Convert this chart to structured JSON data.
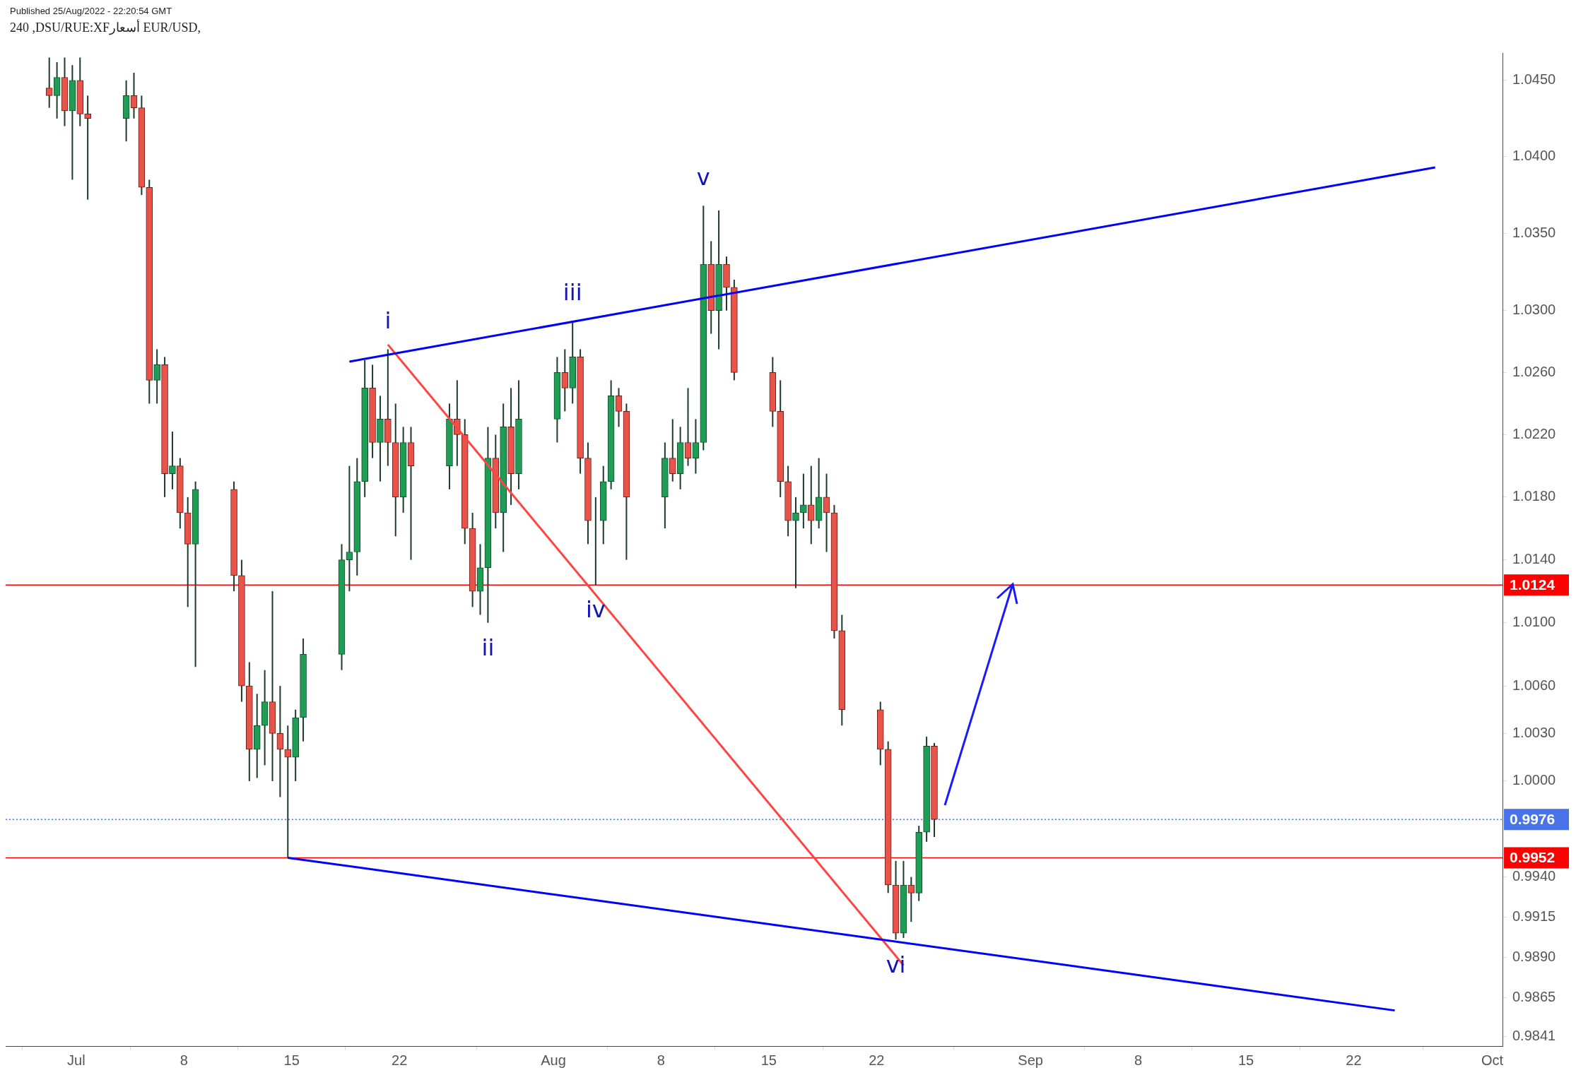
{
  "chart_data": {
    "type": "candlestick",
    "title": "240 ,DSU/RUE:XFأسعار EUR/USD,",
    "x": [
      "2022-06-29T06:00",
      "2022-06-29T18:00",
      "2022-06-30T06:00",
      "2022-06-30T18:00",
      "2022-07-01T06:00",
      "2022-07-01T18:00",
      "2022-07-04T06:00",
      "2022-07-04T18:00",
      "2022-07-05T06:00",
      "2022-07-05T18:00",
      "2022-07-06T06:00",
      "2022-07-06T18:00",
      "2022-07-07T06:00",
      "2022-07-07T18:00",
      "2022-07-08T06:00",
      "2022-07-08T18:00",
      "2022-07-11T06:00",
      "2022-07-11T18:00",
      "2022-07-12T06:00",
      "2022-07-12T18:00",
      "2022-07-13T06:00",
      "2022-07-13T18:00",
      "2022-07-14T06:00",
      "2022-07-14T18:00",
      "2022-07-15T06:00",
      "2022-07-15T18:00",
      "2022-07-18T06:00",
      "2022-07-18T18:00",
      "2022-07-19T06:00",
      "2022-07-19T18:00",
      "2022-07-20T06:00",
      "2022-07-20T18:00",
      "2022-07-21T06:00",
      "2022-07-21T18:00",
      "2022-07-22T06:00",
      "2022-07-22T18:00",
      "2022-07-25T06:00",
      "2022-07-25T18:00",
      "2022-07-26T06:00",
      "2022-07-26T18:00",
      "2022-07-27T06:00",
      "2022-07-27T18:00",
      "2022-07-28T06:00",
      "2022-07-28T18:00",
      "2022-07-29T06:00",
      "2022-07-29T18:00",
      "2022-08-01T06:00",
      "2022-08-01T18:00",
      "2022-08-02T06:00",
      "2022-08-02T18:00",
      "2022-08-03T06:00",
      "2022-08-03T18:00",
      "2022-08-04T06:00",
      "2022-08-04T18:00",
      "2022-08-05T06:00",
      "2022-08-05T18:00",
      "2022-08-08T06:00",
      "2022-08-08T18:00",
      "2022-08-09T06:00",
      "2022-08-09T18:00",
      "2022-08-10T06:00",
      "2022-08-10T18:00",
      "2022-08-11T06:00",
      "2022-08-11T18:00",
      "2022-08-12T06:00",
      "2022-08-12T18:00",
      "2022-08-15T06:00",
      "2022-08-15T18:00",
      "2022-08-16T06:00",
      "2022-08-16T18:00",
      "2022-08-17T06:00",
      "2022-08-17T18:00",
      "2022-08-18T06:00",
      "2022-08-18T18:00",
      "2022-08-19T06:00",
      "2022-08-19T18:00",
      "2022-08-22T06:00",
      "2022-08-22T18:00",
      "2022-08-23T06:00",
      "2022-08-23T18:00",
      "2022-08-24T06:00",
      "2022-08-24T18:00",
      "2022-08-25T06:00",
      "2022-08-25T18:00"
    ],
    "ohlc": [
      [
        1.0445,
        1.0465,
        1.0432,
        1.044
      ],
      [
        1.044,
        1.0462,
        1.0425,
        1.0452
      ],
      [
        1.0452,
        1.0465,
        1.042,
        1.043
      ],
      [
        1.043,
        1.046,
        1.0385,
        1.045
      ],
      [
        1.045,
        1.0465,
        1.042,
        1.0428
      ],
      [
        1.0428,
        1.044,
        1.0372,
        1.0425
      ],
      [
        1.0425,
        1.045,
        1.041,
        1.044
      ],
      [
        1.044,
        1.0455,
        1.0425,
        1.0432
      ],
      [
        1.0432,
        1.044,
        1.0375,
        1.038
      ],
      [
        1.038,
        1.0385,
        1.024,
        1.0255
      ],
      [
        1.0255,
        1.0275,
        1.024,
        1.0265
      ],
      [
        1.0265,
        1.027,
        1.018,
        1.0195
      ],
      [
        1.0195,
        1.0222,
        1.0185,
        1.02
      ],
      [
        1.02,
        1.0205,
        1.016,
        1.017
      ],
      [
        1.017,
        1.018,
        1.011,
        1.015
      ],
      [
        1.015,
        1.019,
        1.0072,
        1.0185
      ],
      [
        1.0185,
        1.019,
        1.012,
        1.013
      ],
      [
        1.013,
        1.014,
        1.005,
        1.006
      ],
      [
        1.006,
        1.0075,
        1.0,
        1.002
      ],
      [
        1.002,
        1.0055,
        1.0002,
        1.0035
      ],
      [
        1.0035,
        1.007,
        1.001,
        1.005
      ],
      [
        1.005,
        1.012,
        1.0,
        1.003
      ],
      [
        1.003,
        1.006,
        0.999,
        1.002
      ],
      [
        1.002,
        1.0035,
        0.9952,
        1.0015
      ],
      [
        1.0015,
        1.0045,
        1.0,
        1.004
      ],
      [
        1.004,
        1.009,
        1.0025,
        1.008
      ],
      [
        1.008,
        1.015,
        1.007,
        1.014
      ],
      [
        1.014,
        1.02,
        1.012,
        1.0145
      ],
      [
        1.0145,
        1.0205,
        1.013,
        1.019
      ],
      [
        1.019,
        1.0268,
        1.018,
        1.025
      ],
      [
        1.025,
        1.0265,
        1.0205,
        1.0215
      ],
      [
        1.0215,
        1.0245,
        1.019,
        1.023
      ],
      [
        1.023,
        1.0275,
        1.02,
        1.0215
      ],
      [
        1.0215,
        1.024,
        1.0155,
        1.018
      ],
      [
        1.018,
        1.0225,
        1.017,
        1.0215
      ],
      [
        1.0215,
        1.0225,
        1.014,
        1.02
      ],
      [
        1.02,
        1.024,
        1.0185,
        1.023
      ],
      [
        1.023,
        1.0255,
        1.02,
        1.022
      ],
      [
        1.022,
        1.023,
        1.015,
        1.016
      ],
      [
        1.016,
        1.017,
        1.011,
        1.012
      ],
      [
        1.012,
        1.015,
        1.0105,
        1.0135
      ],
      [
        1.0135,
        1.0225,
        1.01,
        1.0205
      ],
      [
        1.0205,
        1.022,
        1.016,
        1.017
      ],
      [
        1.017,
        1.024,
        1.0145,
        1.0225
      ],
      [
        1.0225,
        1.025,
        1.0175,
        1.0195
      ],
      [
        1.0195,
        1.0255,
        1.0185,
        1.023
      ],
      [
        1.023,
        1.027,
        1.0215,
        1.026
      ],
      [
        1.026,
        1.0275,
        1.0235,
        1.025
      ],
      [
        1.025,
        1.0293,
        1.024,
        1.027
      ],
      [
        1.027,
        1.0275,
        1.0195,
        1.0205
      ],
      [
        1.0205,
        1.0215,
        1.015,
        1.0165
      ],
      [
        1.0165,
        1.018,
        1.0124,
        1.0165
      ],
      [
        1.0165,
        1.02,
        1.015,
        1.019
      ],
      [
        1.019,
        1.0255,
        1.0185,
        1.0245
      ],
      [
        1.0245,
        1.025,
        1.0225,
        1.0235
      ],
      [
        1.0235,
        1.024,
        1.014,
        1.018
      ],
      [
        1.018,
        1.0215,
        1.016,
        1.0205
      ],
      [
        1.0205,
        1.023,
        1.019,
        1.0195
      ],
      [
        1.0195,
        1.0225,
        1.0185,
        1.0215
      ],
      [
        1.0215,
        1.025,
        1.02,
        1.0205
      ],
      [
        1.0205,
        1.023,
        1.0195,
        1.0215
      ],
      [
        1.0215,
        1.0368,
        1.021,
        1.033
      ],
      [
        1.033,
        1.0345,
        1.0285,
        1.03
      ],
      [
        1.03,
        1.0365,
        1.0275,
        1.033
      ],
      [
        1.033,
        1.0335,
        1.03,
        1.0315
      ],
      [
        1.0315,
        1.032,
        1.0255,
        1.026
      ],
      [
        1.026,
        1.027,
        1.0225,
        1.0235
      ],
      [
        1.0235,
        1.0255,
        1.018,
        1.019
      ],
      [
        1.019,
        1.02,
        1.0155,
        1.0165
      ],
      [
        1.0165,
        1.018,
        1.0122,
        1.017
      ],
      [
        1.017,
        1.0195,
        1.016,
        1.0175
      ],
      [
        1.0175,
        1.02,
        1.015,
        1.0165
      ],
      [
        1.0165,
        1.0205,
        1.016,
        1.018
      ],
      [
        1.018,
        1.0195,
        1.0145,
        1.017
      ],
      [
        1.017,
        1.0175,
        1.009,
        1.0095
      ],
      [
        1.0095,
        1.0105,
        1.0035,
        1.0045
      ],
      [
        1.0045,
        1.005,
        1.001,
        1.002
      ],
      [
        1.002,
        1.0025,
        0.993,
        0.9935
      ],
      [
        0.9935,
        0.995,
        0.9901,
        0.9905
      ],
      [
        0.9905,
        0.995,
        0.9902,
        0.9935
      ],
      [
        0.9935,
        0.994,
        0.9912,
        0.993
      ],
      [
        0.993,
        0.9972,
        0.9925,
        0.9968
      ],
      [
        0.9968,
        1.0028,
        0.9962,
        1.0022
      ],
      [
        1.0022,
        1.0024,
        0.9965,
        0.9976
      ]
    ],
    "series": [
      {
        "type": "line",
        "color": "#0000ff",
        "x": [
          "2022-07-18T18:00",
          "2022-09-27T07:00"
        ],
        "values": [
          1.0267,
          1.0393
        ]
      },
      {
        "type": "line",
        "color": "#0000ff",
        "x": [
          "2022-07-14T18:00",
          "2022-09-24T16:00"
        ],
        "values": [
          0.9952,
          0.9857
        ]
      },
      {
        "type": "line",
        "color": "#ff4444",
        "x": [
          "2022-07-21T06:00",
          "2022-08-23T18:00"
        ],
        "values": [
          1.0278,
          0.9885
        ]
      }
    ],
    "ref_lines": [
      {
        "axis": "y",
        "value": 1.0124,
        "label": "1.0124",
        "color": "#ff0000"
      },
      {
        "axis": "y",
        "value": 0.9952,
        "label": "0.9952",
        "color": "#ff0000"
      },
      {
        "axis": "y",
        "value": 0.9976,
        "label": "0.9976",
        "color": "#4a72e8",
        "line_style": "dotted"
      }
    ],
    "annotations": [
      "Published 25/Aug/2022 - 22:20:54 GMT",
      {
        "text": "i",
        "x": "2022-07-21T06:00",
        "y": 1.0275
      },
      {
        "text": "ii",
        "x": "2022-07-27T18:00",
        "y": 1.01
      },
      {
        "text": "iii",
        "x": "2022-08-02T06:00",
        "y": 1.0293
      },
      {
        "text": "iv",
        "x": "2022-08-03T18:00",
        "y": 1.0124
      },
      {
        "text": "v",
        "x": "2022-08-10T18:00",
        "y": 1.0368
      },
      {
        "text": "vi",
        "x": "2022-08-23T06:00",
        "y": 0.9901
      }
    ],
    "log": true,
    "grid": false,
    "legend": false,
    "xlim": [
      "2022-06-26T10:00",
      "2022-10-01T16:00"
    ],
    "xticks": [
      {
        "value": "2022-07-01",
        "label": "Jul"
      },
      {
        "value": "2022-07-08",
        "label": "8"
      },
      {
        "value": "2022-07-15",
        "label": "15"
      },
      {
        "value": "2022-07-22",
        "label": "22"
      },
      {
        "value": "2022-08-01",
        "label": "Aug"
      },
      {
        "value": "2022-08-08",
        "label": "8"
      },
      {
        "value": "2022-08-15",
        "label": "15"
      },
      {
        "value": "2022-08-22",
        "label": "22"
      },
      {
        "value": "2022-09-01",
        "label": "Sep"
      },
      {
        "value": "2022-09-08",
        "label": "8"
      },
      {
        "value": "2022-09-15",
        "label": "15"
      },
      {
        "value": "2022-09-22",
        "label": "22"
      },
      {
        "value": "2022-10-01",
        "label": "Oct"
      }
    ],
    "ylim": [
      0.9835,
      1.0468
    ],
    "yticks": [
      {
        "value": 0.9841,
        "label": "0.9841"
      },
      {
        "value": 0.9865,
        "label": "0.9865"
      },
      {
        "value": 0.989,
        "label": "0.9890"
      },
      {
        "value": 0.9915,
        "label": "0.9915"
      },
      {
        "value": 0.994,
        "label": "0.9940"
      },
      {
        "value": 1.0,
        "label": "1.0000"
      },
      {
        "value": 1.003,
        "label": "1.0030"
      },
      {
        "value": 1.006,
        "label": "1.0060"
      },
      {
        "value": 1.01,
        "label": "1.0100"
      },
      {
        "value": 1.014,
        "label": "1.0140"
      },
      {
        "value": 1.018,
        "label": "1.0180"
      },
      {
        "value": 1.022,
        "label": "1.0220"
      },
      {
        "value": 1.026,
        "label": "1.0260"
      },
      {
        "value": 1.03,
        "label": "1.0300"
      },
      {
        "value": 1.035,
        "label": "1.0350"
      },
      {
        "value": 1.04,
        "label": "1.0400"
      },
      {
        "value": 1.045,
        "label": "1.0450"
      }
    ]
  }
}
